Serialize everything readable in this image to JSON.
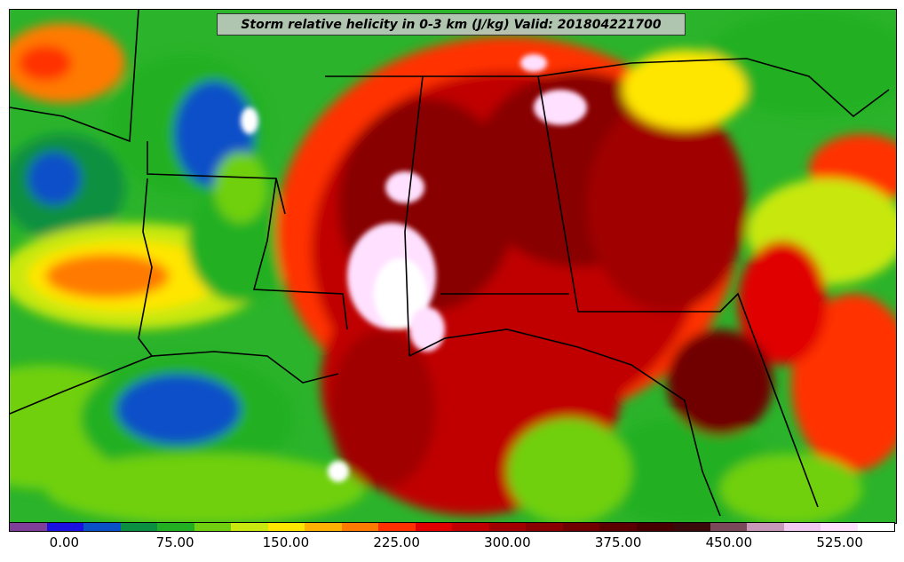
{
  "map": {
    "title": "Storm relative helicity in 0-3 km (J/kg) Valid: 201804221700",
    "legend": {
      "colors": [
        "#7f3f98",
        "#1a10e0",
        "#0a50c8",
        "#0a9040",
        "#22b022",
        "#70d010",
        "#c8e810",
        "#ffe600",
        "#ffb000",
        "#ff7a00",
        "#ff3000",
        "#e00000",
        "#c00000",
        "#a00000",
        "#880000",
        "#700000",
        "#5a0000",
        "#460000",
        "#3a0a0a",
        "#7a4a5a",
        "#c898b8",
        "#f0c8f0",
        "#ffe0ff",
        "#ffffff"
      ],
      "ticks": [
        "0.00",
        "75.00",
        "150.00",
        "225.00",
        "300.00",
        "375.00",
        "450.00",
        "525.00"
      ],
      "tick_values": [
        0,
        75,
        150,
        225,
        300,
        375,
        450,
        525
      ],
      "range": [
        -37.5,
        562.5
      ]
    }
  }
}
